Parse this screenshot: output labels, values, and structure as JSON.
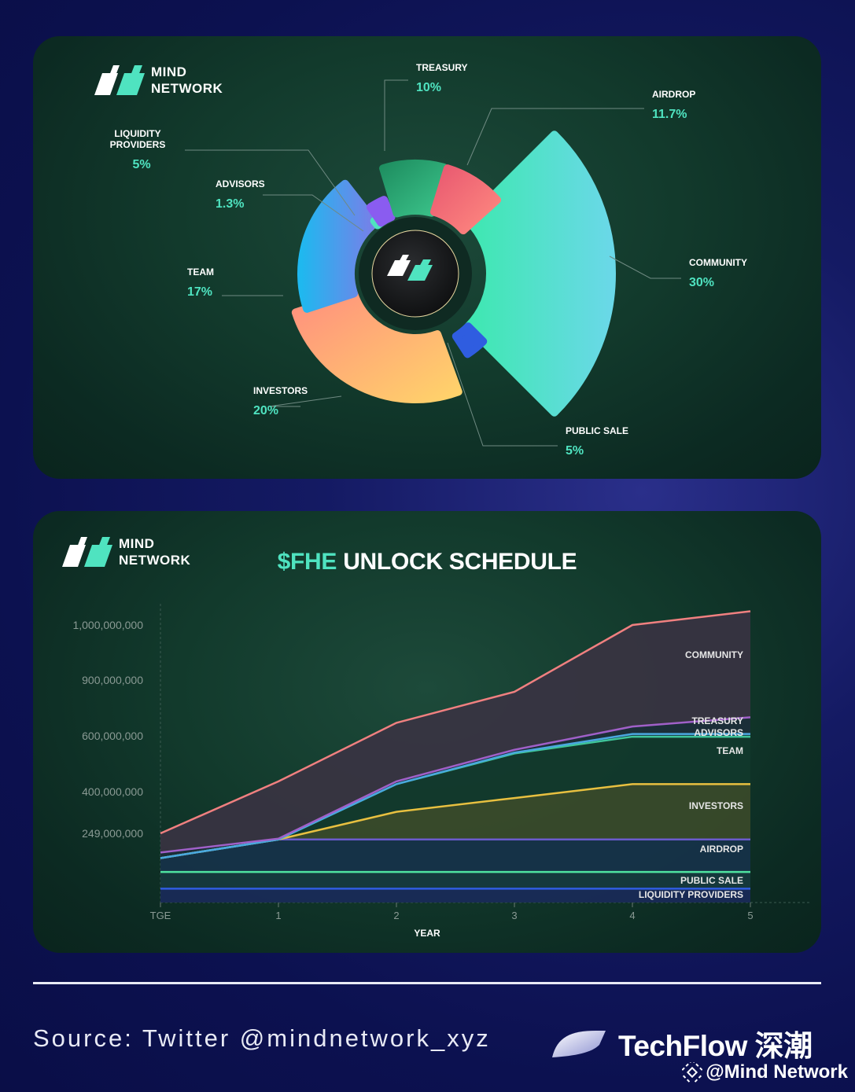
{
  "logo": {
    "line1": "MIND",
    "line2": "NETWORK"
  },
  "chart_data": [
    {
      "type": "pie",
      "categories": [
        "COMMUNITY",
        "INVESTORS",
        "TEAM",
        "ADVISORS",
        "LIQUIDITY PROVIDERS",
        "TREASURY",
        "AIRDROP",
        "PUBLIC SALE"
      ],
      "values": [
        30,
        20,
        17,
        1.3,
        5,
        10,
        11.7,
        5
      ],
      "labels": [
        "30%",
        "20%",
        "17%",
        "1.3%",
        "5%",
        "10%",
        "11.7%",
        "5%"
      ],
      "colors": [
        "#4fe3c0",
        "#ffc46b",
        "#3fa6f0",
        "#4fe3c0",
        "#8a5cf0",
        "#27a070",
        "#f06b73",
        "#2f5de0"
      ],
      "label_lines": {
        "LIQUIDITY PROVIDERS": [
          "LIQUIDITY",
          "PROVIDERS"
        ]
      }
    },
    {
      "type": "area",
      "title_accent": "$FHE",
      "title_rest": "UNLOCK SCHEDULE",
      "xlabel": "YEAR",
      "x": [
        "TGE",
        "1",
        "2",
        "3",
        "4",
        "5"
      ],
      "y_ticks": [
        "1,000,000,000",
        "900,000,000",
        "600,000,000",
        "400,000,000",
        "249,000,000"
      ],
      "series": [
        {
          "name": "LIQUIDITY PROVIDERS",
          "color": "#2f5de0",
          "values": [
            50000000,
            50000000,
            50000000,
            50000000,
            50000000,
            50000000
          ]
        },
        {
          "name": "PUBLIC SALE",
          "color": "#4fe3a0",
          "values": [
            110000000,
            110000000,
            110000000,
            110000000,
            110000000,
            110000000
          ]
        },
        {
          "name": "AIRDROP",
          "color": "#6a5acd",
          "values": [
            160000000,
            227000000,
            227000000,
            227000000,
            227000000,
            227000000
          ]
        },
        {
          "name": "INVESTORS",
          "color": "#e8c040",
          "values": [
            160000000,
            227000000,
            327000000,
            377000000,
            427000000,
            427000000
          ]
        },
        {
          "name": "TEAM",
          "color": "#3fc59a",
          "values": [
            160000000,
            227000000,
            427000000,
            537000000,
            597000000,
            597000000
          ]
        },
        {
          "name": "ADVISORS",
          "color": "#4aa8e0",
          "values": [
            160000000,
            227000000,
            427000000,
            540000000,
            610000000,
            610000000
          ]
        },
        {
          "name": "TREASURY",
          "color": "#a060c8",
          "values": [
            180000000,
            230000000,
            437000000,
            550000000,
            650000000,
            700000000
          ]
        },
        {
          "name": "COMMUNITY",
          "color": "#f08080",
          "values": [
            249000000,
            437000000,
            670000000,
            837000000,
            1000000000,
            1050000000
          ]
        }
      ],
      "series_labels": [
        "COMMUNITY",
        "TREASURY",
        "ADVISORS",
        "TEAM",
        "INVESTORS",
        "AIRDROP",
        "PUBLIC SALE",
        "LIQUIDITY PROVIDERS"
      ]
    }
  ],
  "footer": {
    "source": "Source: Twitter @mindnetwork_xyz",
    "brand": "TechFlow 深潮",
    "watermark": "@Mind Network"
  }
}
